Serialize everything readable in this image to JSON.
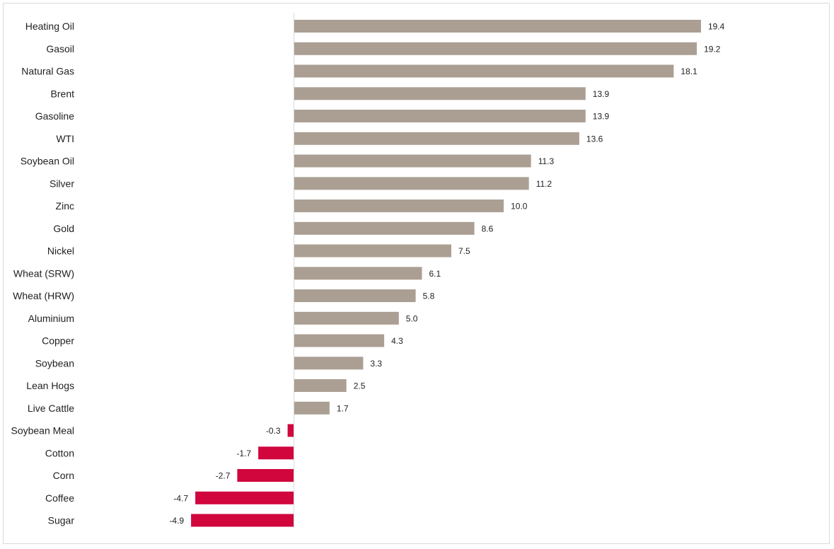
{
  "chart_data": {
    "type": "bar",
    "orientation": "horizontal",
    "title": "",
    "xlabel": "",
    "ylabel": "",
    "categories": [
      "Heating Oil",
      "Gasoil",
      "Natural Gas",
      "Brent",
      "Gasoline",
      "WTI",
      "Soybean Oil",
      "Silver",
      "Zinc",
      "Gold",
      "Nickel",
      "Wheat (SRW)",
      "Wheat (HRW)",
      "Aluminium",
      "Copper",
      "Soybean",
      "Lean Hogs",
      "Live Cattle",
      "Soybean Meal",
      "Cotton",
      "Corn",
      "Coffee",
      "Sugar"
    ],
    "values": [
      19.4,
      19.2,
      18.1,
      13.9,
      13.9,
      13.6,
      11.3,
      11.2,
      10.0,
      8.6,
      7.5,
      6.1,
      5.8,
      5.0,
      4.3,
      3.3,
      2.5,
      1.7,
      -0.3,
      -1.7,
      -2.7,
      -4.7,
      -4.9
    ],
    "value_labels": [
      "19.4",
      "19.2",
      "18.1",
      "13.9",
      "13.9",
      "13.6",
      "11.3",
      "11.2",
      "10.0",
      "8.6",
      "7.5",
      "6.1",
      "5.8",
      "5.0",
      "4.3",
      "3.3",
      "2.5",
      "1.7",
      "-0.3",
      "-1.7",
      "-2.7",
      "-4.7",
      "-4.9"
    ],
    "colors": {
      "positive": "#ab9f93",
      "negative": "#d0063d",
      "axis": "#d9d9d9",
      "text": "#222222"
    },
    "legend": "none",
    "grid": false
  }
}
